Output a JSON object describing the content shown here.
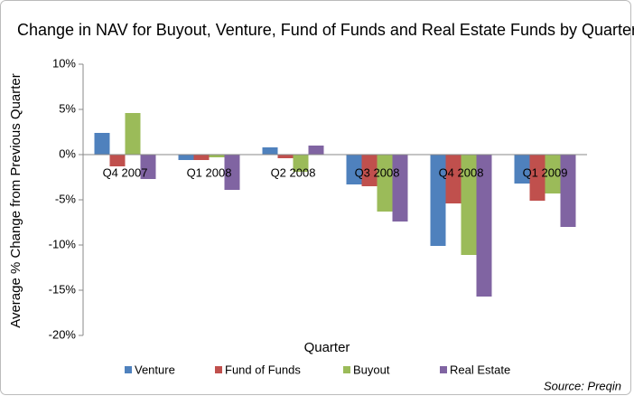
{
  "chart_data": {
    "type": "bar",
    "title": "Change in NAV for Buyout, Venture, Fund of Funds and Real Estate Funds by Quarter",
    "x_label": "Quarter",
    "y_label": "Average % Change from Previous Quarter",
    "source": "Source: Preqin",
    "categories": [
      "Q4 2007",
      "Q1 2008",
      "Q2 2008",
      "Q3 2008",
      "Q4 2008",
      "Q1 2009"
    ],
    "series": [
      {
        "name": "Venture",
        "color": "#4f81bd",
        "values": [
          2.4,
          -0.6,
          0.8,
          -3.3,
          -10.1,
          -3.2
        ]
      },
      {
        "name": "Fund of Funds",
        "color": "#c0504d",
        "values": [
          -1.3,
          -0.6,
          -0.4,
          -3.5,
          -5.4,
          -5.1
        ]
      },
      {
        "name": "Buyout",
        "color": "#9bbb59",
        "values": [
          4.6,
          -0.3,
          -1.9,
          -6.3,
          -11.1,
          -4.3
        ]
      },
      {
        "name": "Real Estate",
        "color": "#8064a2",
        "values": [
          -2.7,
          -3.9,
          1.0,
          -7.4,
          -15.7,
          -8.0
        ]
      }
    ],
    "ylim": [
      -20,
      10
    ],
    "yticks": [
      {
        "value": -20,
        "label": "-20%"
      },
      {
        "value": -15,
        "label": "-15%"
      },
      {
        "value": -10,
        "label": "-10%"
      },
      {
        "value": -5,
        "label": "-5%"
      },
      {
        "value": 0,
        "label": "0%"
      },
      {
        "value": 5,
        "label": "5%"
      },
      {
        "value": 10,
        "label": "10%"
      }
    ],
    "legend": "bottom"
  }
}
